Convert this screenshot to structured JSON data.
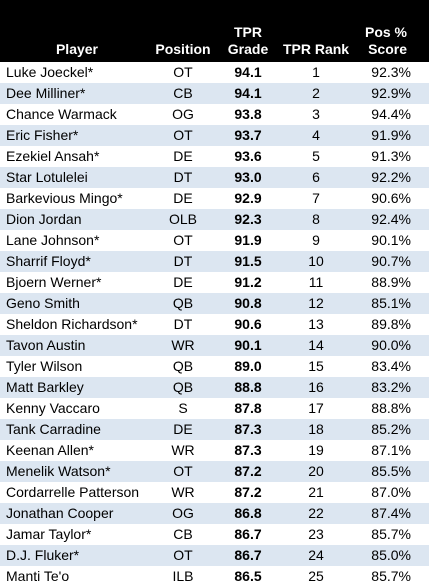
{
  "headers": {
    "player": "Player",
    "position": "Position",
    "grade_line1": "TPR",
    "grade_line2": "Grade",
    "rank": "TPR Rank",
    "pct_line1": "Pos %",
    "pct_line2": "Score"
  },
  "colors": {
    "header_bg": "#000000",
    "header_text": "#ffffff",
    "alt_row": "#dce6f1"
  },
  "rows": [
    {
      "player": "Luke Joeckel*",
      "position": "OT",
      "grade": "94.1",
      "rank": "1",
      "pct": "92.3%"
    },
    {
      "player": "Dee Milliner*",
      "position": "CB",
      "grade": "94.1",
      "rank": "2",
      "pct": "92.9%"
    },
    {
      "player": "Chance Warmack",
      "position": "OG",
      "grade": "93.8",
      "rank": "3",
      "pct": "94.4%"
    },
    {
      "player": "Eric Fisher*",
      "position": "OT",
      "grade": "93.7",
      "rank": "4",
      "pct": "91.9%"
    },
    {
      "player": "Ezekiel Ansah*",
      "position": "DE",
      "grade": "93.6",
      "rank": "5",
      "pct": "91.3%"
    },
    {
      "player": "Star Lotulelei",
      "position": "DT",
      "grade": "93.0",
      "rank": "6",
      "pct": "92.2%"
    },
    {
      "player": "Barkevious Mingo*",
      "position": "DE",
      "grade": "92.9",
      "rank": "7",
      "pct": "90.6%"
    },
    {
      "player": "Dion Jordan",
      "position": "OLB",
      "grade": "92.3",
      "rank": "8",
      "pct": "92.4%"
    },
    {
      "player": "Lane Johnson*",
      "position": "OT",
      "grade": "91.9",
      "rank": "9",
      "pct": "90.1%"
    },
    {
      "player": "Sharrif Floyd*",
      "position": "DT",
      "grade": "91.5",
      "rank": "10",
      "pct": "90.7%"
    },
    {
      "player": "Bjoern Werner*",
      "position": "DE",
      "grade": "91.2",
      "rank": "11",
      "pct": "88.9%"
    },
    {
      "player": "Geno Smith",
      "position": "QB",
      "grade": "90.8",
      "rank": "12",
      "pct": "85.1%"
    },
    {
      "player": "Sheldon Richardson*",
      "position": "DT",
      "grade": "90.6",
      "rank": "13",
      "pct": "89.8%"
    },
    {
      "player": "Tavon Austin",
      "position": "WR",
      "grade": "90.1",
      "rank": "14",
      "pct": "90.0%"
    },
    {
      "player": "Tyler Wilson",
      "position": "QB",
      "grade": "89.0",
      "rank": "15",
      "pct": "83.4%"
    },
    {
      "player": "Matt Barkley",
      "position": "QB",
      "grade": "88.8",
      "rank": "16",
      "pct": "83.2%"
    },
    {
      "player": "Kenny Vaccaro",
      "position": "S",
      "grade": "87.8",
      "rank": "17",
      "pct": "88.8%"
    },
    {
      "player": "Tank Carradine",
      "position": "DE",
      "grade": "87.3",
      "rank": "18",
      "pct": "85.2%"
    },
    {
      "player": "Keenan Allen*",
      "position": "WR",
      "grade": "87.3",
      "rank": "19",
      "pct": "87.1%"
    },
    {
      "player": "Menelik Watson*",
      "position": "OT",
      "grade": "87.2",
      "rank": "20",
      "pct": "85.5%"
    },
    {
      "player": "Cordarrelle Patterson",
      "position": "WR",
      "grade": "87.2",
      "rank": "21",
      "pct": "87.0%"
    },
    {
      "player": "Jonathan Cooper",
      "position": "OG",
      "grade": "86.8",
      "rank": "22",
      "pct": "87.4%"
    },
    {
      "player": "Jamar Taylor*",
      "position": "CB",
      "grade": "86.7",
      "rank": "23",
      "pct": "85.7%"
    },
    {
      "player": "D.J. Fluker*",
      "position": "OT",
      "grade": "86.7",
      "rank": "24",
      "pct": "85.0%"
    },
    {
      "player": "Manti Te'o",
      "position": "ILB",
      "grade": "86.5",
      "rank": "25",
      "pct": "85.7%"
    }
  ]
}
